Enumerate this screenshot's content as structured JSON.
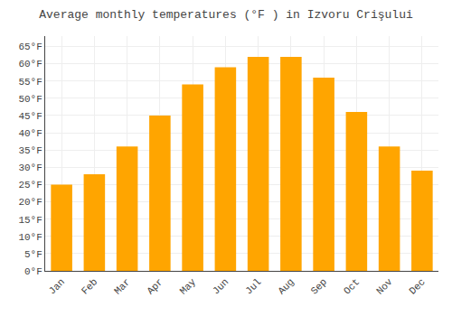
{
  "chart_data": {
    "type": "bar",
    "title": "Average monthly temperatures (°F ) in Izvoru Crişului",
    "categories": [
      "Jan",
      "Feb",
      "Mar",
      "Apr",
      "May",
      "Jun",
      "Jul",
      "Aug",
      "Sep",
      "Oct",
      "Nov",
      "Dec"
    ],
    "values": [
      25,
      28,
      36,
      45,
      54,
      59,
      62,
      62,
      56,
      46,
      36,
      29
    ],
    "color": "#FFA500",
    "ylim": [
      0,
      68
    ],
    "yticks": [
      {
        "value": 0,
        "label": "0°F"
      },
      {
        "value": 5,
        "label": "5°F"
      },
      {
        "value": 10,
        "label": "10°F"
      },
      {
        "value": 15,
        "label": "15°F"
      },
      {
        "value": 20,
        "label": "20°F"
      },
      {
        "value": 25,
        "label": "25°F"
      },
      {
        "value": 30,
        "label": "30°F"
      },
      {
        "value": 35,
        "label": "35°F"
      },
      {
        "value": 40,
        "label": "40°F"
      },
      {
        "value": 45,
        "label": "45°F"
      },
      {
        "value": 50,
        "label": "50°F"
      },
      {
        "value": 55,
        "label": "55°F"
      },
      {
        "value": 60,
        "label": "60°F"
      },
      {
        "value": 65,
        "label": "65°F"
      }
    ],
    "grid": true
  }
}
